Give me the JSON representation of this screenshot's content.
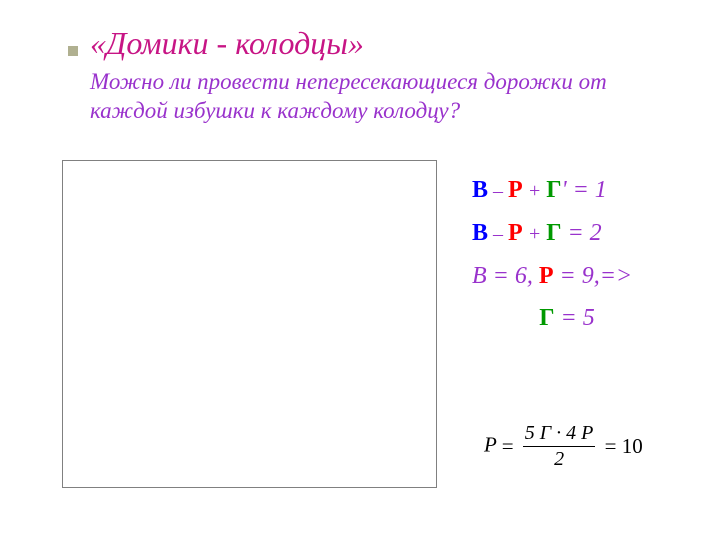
{
  "colors": {
    "title": "#c71585",
    "subtitle": "#9932cc",
    "var_v": "#0000ff",
    "var_p": "#ff0000",
    "var_g": "#009900",
    "rest": "#9932cc",
    "frac": "#000000",
    "bullet": "#b0b090",
    "box_border": "#808080"
  },
  "title": "«Домики - колодцы»",
  "subtitle": "Можно ли провести непересекающиеся дорожки от каждой избушки к каждому колодцу?",
  "eq1": {
    "v": "В",
    "minus": " – ",
    "p": "Р",
    "plus": " + ",
    "g": "Г",
    "prime": "'",
    "rest": " = 1"
  },
  "eq2": {
    "v": "В",
    "minus": " – ",
    "p": "Р",
    "plus": " + ",
    "g": "Г",
    "rest": " = 2"
  },
  "eq3": {
    "v_part": "В = 6, ",
    "p": "Р",
    "p_rest": " = 9,=>"
  },
  "eq4": {
    "g": "Г",
    "rest": " = 5"
  },
  "frac": {
    "lhs": "P",
    "num": "5 Г · 4 Р",
    "den": "2",
    "result": "10"
  }
}
